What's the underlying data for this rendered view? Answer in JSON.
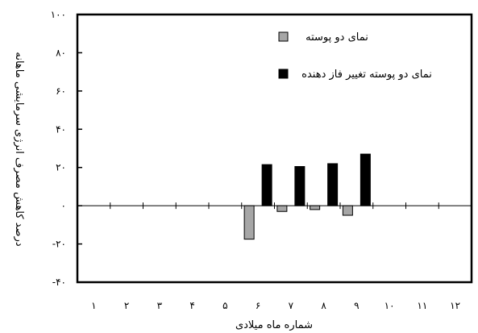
{
  "chart_data": {
    "type": "bar",
    "categories": [
      "۱",
      "۲",
      "۳",
      "۴",
      "۵",
      "۶",
      "۷",
      "۸",
      "۹",
      "۱۰",
      "۱۱",
      "۱۲"
    ],
    "series": [
      {
        "name": "نمای دو پوسته",
        "color": "#a6a6a6",
        "values": [
          null,
          null,
          null,
          null,
          null,
          -17.5,
          -3,
          -2,
          -5,
          null,
          null,
          null
        ]
      },
      {
        "name": "نمای دو پوسته تغییر فاز دهنده",
        "color": "#000000",
        "values": [
          null,
          null,
          null,
          null,
          null,
          21.5,
          20.5,
          22,
          27,
          null,
          null,
          null
        ]
      }
    ],
    "xlabel": "شماره ماه میلادی",
    "ylabel": "درصد کاهش مصرف انرژی سرمایشی ماهانه",
    "ylim": [
      -40,
      100
    ],
    "yticks": [
      -40,
      -20,
      0,
      20,
      40,
      60,
      80,
      100
    ],
    "ytick_labels": [
      "-۴۰",
      "-۲۰",
      "۰",
      "۲۰",
      "۴۰",
      "۶۰",
      "۸۰",
      "۱۰۰"
    ],
    "legend_position": "top-right",
    "grid": false
  }
}
